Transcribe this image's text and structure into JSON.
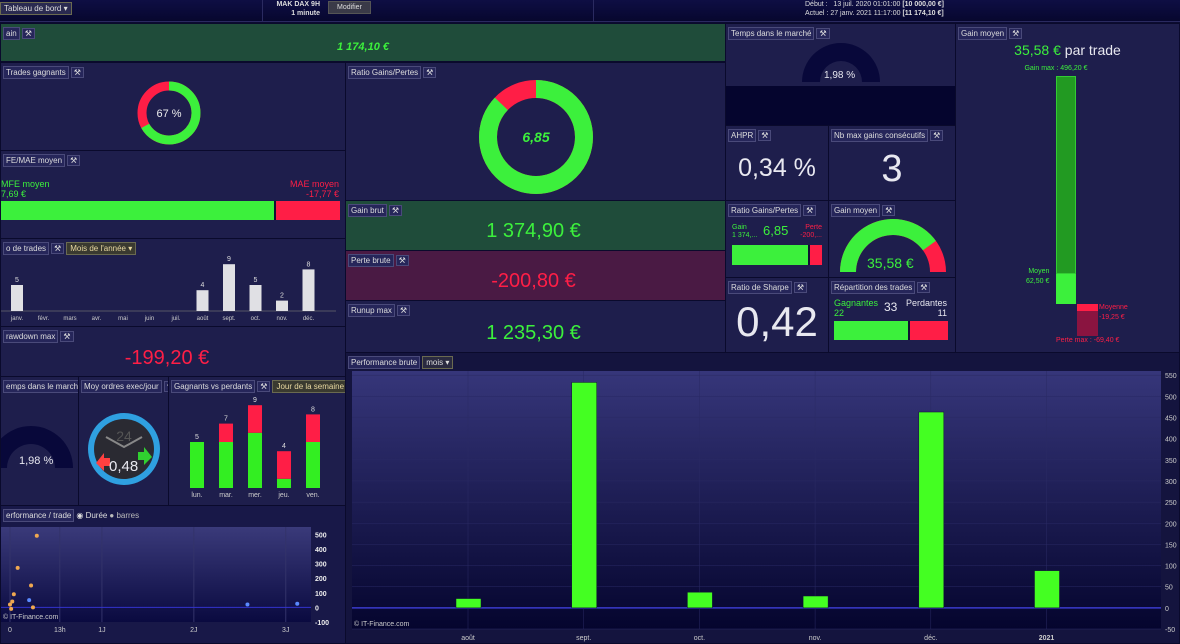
{
  "topbar": {
    "dashboard_menu": "Tableau de bord",
    "instrument": "MAK DAX 9H",
    "timeframe": "1 minute",
    "modify_button": "Modifier",
    "start_label": "Début :",
    "start_date": "13 juil. 2020 01:01:00",
    "start_value": "[10 000,00 €]",
    "current_label": "Actuel :",
    "current_date": "27 janv. 2021 11:17:00",
    "current_value": "[11 174,10 €]"
  },
  "gain": {
    "title": "ain",
    "value": "1 174,10 €"
  },
  "trades_gagnants": {
    "title": "Trades gagnants",
    "value": "67 %",
    "percent": 67
  },
  "mfe_mae": {
    "title": "FE/MAE moyen",
    "mfe_label": "MFE moyen",
    "mfe_value": "7,69 €",
    "mae_label": "MAE moyen",
    "mae_value": "-17,77 €",
    "mfe_share": 0.81
  },
  "nb_trades": {
    "title": "o de trades",
    "dropdown": "Mois de l'année",
    "chart_data": {
      "type": "bar",
      "categories": [
        "janv.",
        "févr.",
        "mars",
        "avr.",
        "mai",
        "juin",
        "juil.",
        "août",
        "sept.",
        "oct.",
        "nov.",
        "déc."
      ],
      "values": [
        5,
        0,
        0,
        0,
        0,
        0,
        0,
        4,
        9,
        5,
        2,
        8
      ]
    }
  },
  "drawdown": {
    "title": "rawdown max",
    "value": "-199,20 €"
  },
  "temps_marche_small": {
    "title": "emps dans le marché",
    "value": "1,98 %",
    "percent": 1.98
  },
  "moy_ordres": {
    "title": "Moy ordres exec/jour",
    "value": "0,48",
    "dial_label": "24"
  },
  "gagnants_perdants": {
    "title": "Gagnants vs perdants",
    "dropdown": "Jour de la semaine",
    "chart_data": {
      "type": "bar",
      "categories": [
        "lun.",
        "mar.",
        "mer.",
        "jeu.",
        "ven."
      ],
      "totals": [
        5,
        7,
        9,
        4,
        8
      ],
      "series": [
        {
          "values": [
            5,
            5,
            6,
            1,
            5
          ],
          "color": "#33ee22"
        },
        {
          "values": [
            0,
            2,
            3,
            3,
            3
          ],
          "color": "#ff1e46"
        }
      ]
    }
  },
  "perf_trade": {
    "title": "erformance / trade",
    "radio_duree": "Durée",
    "radio_barres": "barres",
    "watermark": "© IT-Finance.com",
    "chart_data": {
      "type": "scatter",
      "x_ticks": [
        "0",
        "13h",
        "1J",
        "2J",
        "3J"
      ],
      "y_ticks": [
        500,
        400,
        300,
        200,
        100,
        0,
        -100
      ],
      "ylim": [
        -100,
        550
      ],
      "points": [
        {
          "x": 7,
          "y": 490,
          "c": "orange"
        },
        {
          "x": 2,
          "y": 270,
          "c": "orange"
        },
        {
          "x": 5.5,
          "y": 150,
          "c": "orange"
        },
        {
          "x": 1,
          "y": 90,
          "c": "orange"
        },
        {
          "x": 5,
          "y": 50,
          "c": "blue"
        },
        {
          "x": 6,
          "y": 0,
          "c": "orange"
        },
        {
          "x": 0,
          "y": 20,
          "c": "orange"
        },
        {
          "x": 0.3,
          "y": -10,
          "c": "orange"
        },
        {
          "x": 0.6,
          "y": 40,
          "c": "orange"
        },
        {
          "x": 62,
          "y": 20,
          "c": "blue"
        },
        {
          "x": 75,
          "y": 25,
          "c": "blue"
        }
      ]
    }
  },
  "ratio_gp": {
    "title": "Ratio Gains/Pertes",
    "value": "6,85",
    "gain_share": 0.87
  },
  "gain_brut": {
    "title": "Gain brut",
    "value": "1 374,90 €"
  },
  "perte_brute": {
    "title": "Perte brute",
    "value": "-200,80 €"
  },
  "runup": {
    "title": "Runup max",
    "value": "1 235,30 €"
  },
  "temps_marche": {
    "title": "Temps dans le marché",
    "value": "1,98 %",
    "percent": 1.98
  },
  "ahpr": {
    "title": "AHPR",
    "value": "0,34 %"
  },
  "nb_max_gains": {
    "title": "Nb max gains consécutifs",
    "value": "3"
  },
  "ratio_small": {
    "title": "Ratio Gains/Pertes",
    "gain_label": "Gain",
    "gain_value": "1 374,...",
    "value": "6,85",
    "loss_label": "Perte",
    "loss_value": "-200,...",
    "gain_share": 0.87
  },
  "gain_moyen_gauge": {
    "title": "Gain moyen",
    "value": "35,58 €",
    "fraction": 0.8
  },
  "sharpe": {
    "title": "Ratio de Sharpe",
    "value": "0,42"
  },
  "repartition": {
    "title": "Répartition des trades",
    "win_label": "Gagnantes",
    "win_value": "22",
    "total": "33",
    "loss_label": "Perdantes",
    "loss_value": "11"
  },
  "gain_moyen": {
    "title": "Gain moyen",
    "value": "35,58 €",
    "suffix": "par trade",
    "gain_max": "Gain max : 496,20 €",
    "moyen_label": "Moyen",
    "moyen_value": "62,50 €",
    "moyenne_label": "Moyenne",
    "moyenne_value": "-19,25 €",
    "perte_max": "Perte max : -69,40 €"
  },
  "perf_brute": {
    "title": "Performance brute",
    "dropdown": "mois",
    "watermark": "© IT-Finance.com",
    "chart_data": {
      "type": "bar",
      "categories": [
        "août",
        "sept.",
        "oct.",
        "nov.",
        "déc.",
        "2021"
      ],
      "values": [
        22,
        533,
        37,
        28,
        463,
        88
      ],
      "y_ticks": [
        550,
        500,
        450,
        400,
        350,
        300,
        250,
        200,
        150,
        100,
        50,
        0,
        -50
      ],
      "ylim": [
        -50,
        560
      ],
      "color": "#44ff22"
    }
  },
  "colors": {
    "green": "#3cf03c",
    "red": "#ff1e46",
    "panel": "#1e1e4c"
  }
}
